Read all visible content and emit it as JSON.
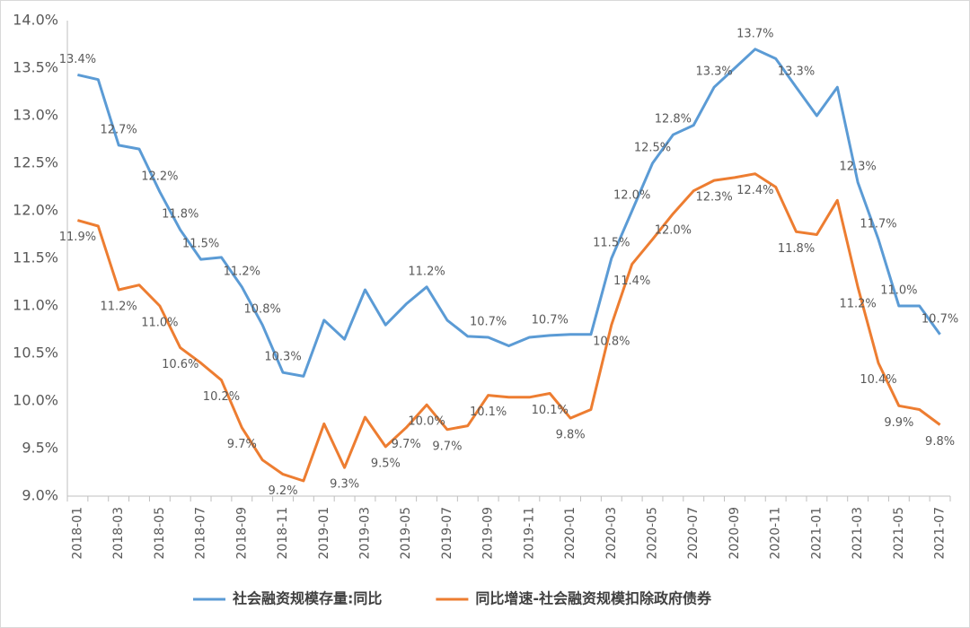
{
  "chart_data": {
    "type": "line",
    "categories": [
      "2018-01",
      null,
      "2018-03",
      null,
      "2018-05",
      null,
      "2018-07",
      null,
      "2018-09",
      null,
      "2018-11",
      null,
      "2019-01",
      null,
      "2019-03",
      null,
      "2019-05",
      null,
      "2019-07",
      null,
      "2019-09",
      null,
      "2019-11",
      null,
      "2020-01",
      null,
      "2020-03",
      null,
      "2020-05",
      null,
      "2020-07",
      null,
      "2020-09",
      null,
      "2020-11",
      null,
      "2021-01",
      null,
      "2021-03",
      null,
      "2021-05",
      null,
      "2021-07"
    ],
    "series": [
      {
        "name": "社会融资规模存量:同比",
        "color": "#5b9bd5",
        "values": [
          13.43,
          13.38,
          12.69,
          12.65,
          12.2,
          11.8,
          11.49,
          11.51,
          11.2,
          10.8,
          10.3,
          10.26,
          10.85,
          10.65,
          11.17,
          10.8,
          11.02,
          11.2,
          10.85,
          10.68,
          10.67,
          10.58,
          10.67,
          10.69,
          10.7,
          10.7,
          11.5,
          12.0,
          12.5,
          12.8,
          12.9,
          13.3,
          13.5,
          13.7,
          13.6,
          13.3,
          13.0,
          13.3,
          12.3,
          11.7,
          11.0,
          11.0,
          10.7
        ],
        "value_labels": [
          "13.4%",
          null,
          "12.7%",
          null,
          "12.2%",
          "11.8%",
          "11.5%",
          null,
          "11.2%",
          "10.8%",
          "10.3%",
          null,
          null,
          null,
          null,
          null,
          null,
          "11.2%",
          null,
          null,
          "10.7%",
          null,
          null,
          "10.7%",
          null,
          null,
          "11.5%",
          "12.0%",
          "12.5%",
          "12.8%",
          null,
          "13.3%",
          null,
          "13.7%",
          null,
          "13.3%",
          null,
          null,
          "12.3%",
          "11.7%",
          "11.0%",
          null,
          "10.7%"
        ]
      },
      {
        "name": "同比增速-社会融资规模扣除政府债券",
        "color": "#ed7d31",
        "values": [
          11.9,
          11.84,
          11.17,
          11.22,
          11.0,
          10.56,
          10.4,
          10.22,
          9.72,
          9.38,
          9.23,
          9.16,
          9.76,
          9.3,
          9.83,
          9.52,
          9.72,
          9.96,
          9.7,
          9.74,
          10.06,
          10.04,
          10.04,
          10.08,
          9.82,
          9.91,
          10.8,
          11.44,
          11.7,
          11.97,
          12.21,
          12.32,
          12.35,
          12.39,
          12.25,
          11.78,
          11.75,
          12.11,
          11.2,
          10.4,
          9.95,
          9.91,
          9.75
        ],
        "value_labels": [
          "11.9%",
          null,
          "11.2%",
          null,
          "11.0%",
          "10.6%",
          null,
          "10.2%",
          "9.7%",
          null,
          "9.2%",
          null,
          null,
          "9.3%",
          null,
          "9.5%",
          "9.7%",
          "10.0%",
          "9.7%",
          null,
          "10.1%",
          null,
          null,
          "10.1%",
          "9.8%",
          null,
          "10.8%",
          "11.4%",
          null,
          "12.0%",
          null,
          "12.3%",
          null,
          "12.4%",
          null,
          "11.8%",
          null,
          null,
          "11.2%",
          "10.4%",
          "9.9%",
          null,
          "9.8%"
        ]
      }
    ],
    "ylim": [
      9.0,
      14.0
    ],
    "yticks": [
      {
        "value": 9.0,
        "label": "9.0%"
      },
      {
        "value": 9.5,
        "label": "9.5%"
      },
      {
        "value": 10.0,
        "label": "10.0%"
      },
      {
        "value": 10.5,
        "label": "10.5%"
      },
      {
        "value": 11.0,
        "label": "11.0%"
      },
      {
        "value": 11.5,
        "label": "11.5%"
      },
      {
        "value": 12.0,
        "label": "12.0%"
      },
      {
        "value": 12.5,
        "label": "12.5%"
      },
      {
        "value": 13.0,
        "label": "13.0%"
      },
      {
        "value": 13.5,
        "label": "13.5%"
      },
      {
        "value": 14.0,
        "label": "14.0%"
      }
    ],
    "grid": false,
    "legend": "bottom"
  }
}
